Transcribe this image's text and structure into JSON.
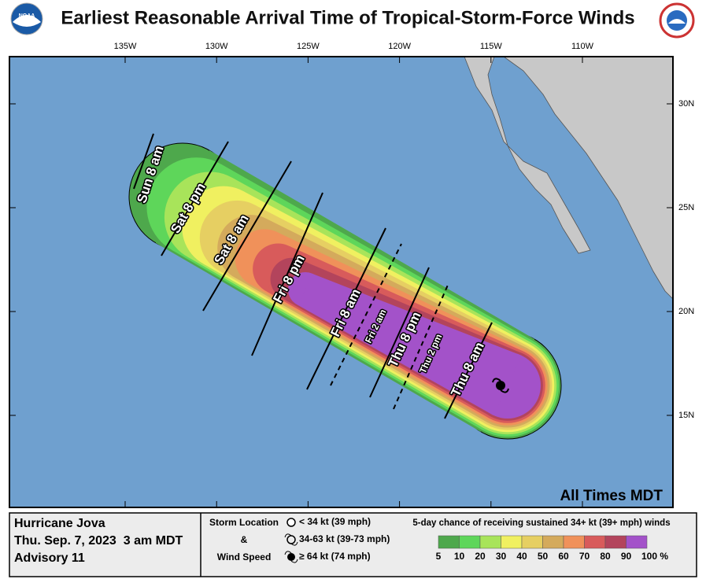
{
  "header": {
    "title": "Earliest Reasonable Arrival Time of Tropical-Storm-Force Winds"
  },
  "map": {
    "longitude_labels": [
      "135W",
      "130W",
      "125W",
      "120W",
      "115W",
      "110W"
    ],
    "latitude_labels": [
      "30N",
      "25N",
      "20N",
      "15N"
    ],
    "arrival_times": [
      {
        "label": "Sun 8 am",
        "dashed": false
      },
      {
        "label": "Sat 8 pm",
        "dashed": false
      },
      {
        "label": "Sat 8 am",
        "dashed": false
      },
      {
        "label": "Fri 8 pm",
        "dashed": false
      },
      {
        "label": "Fri 8 am",
        "dashed": false
      },
      {
        "label": "Fri 2 am",
        "dashed": true
      },
      {
        "label": "Thu 8 pm",
        "dashed": false
      },
      {
        "label": "Thu 2 pm",
        "dashed": true
      },
      {
        "label": "Thu 8 am",
        "dashed": false
      }
    ],
    "note": "All Times MDT"
  },
  "footer": {
    "storm": {
      "name": "Hurricane Jova",
      "date": "Thu. Sep. 7, 2023  3 am MDT",
      "advisory": "Advisory 11"
    },
    "legend": {
      "title_lines": [
        "Storm Location",
        "&",
        "Wind Speed"
      ],
      "symbols": [
        "< 34 kt (39 mph)",
        "34-63 kt (39-73 mph)",
        "≥ 64 kt (74 mph)"
      ]
    },
    "scale": {
      "title": "5-day chance of receiving sustained 34+ kt (39+ mph) winds",
      "labels": [
        "5",
        "10",
        "20",
        "30",
        "40",
        "50",
        "60",
        "70",
        "80",
        "90",
        "100 %"
      ],
      "colors": [
        "#4ea84c",
        "#5ed65a",
        "#a8e45a",
        "#f0f060",
        "#e6cf62",
        "#d4aa5c",
        "#f0915a",
        "#d85b5b",
        "#b3445c",
        "#a352c9"
      ]
    }
  }
}
